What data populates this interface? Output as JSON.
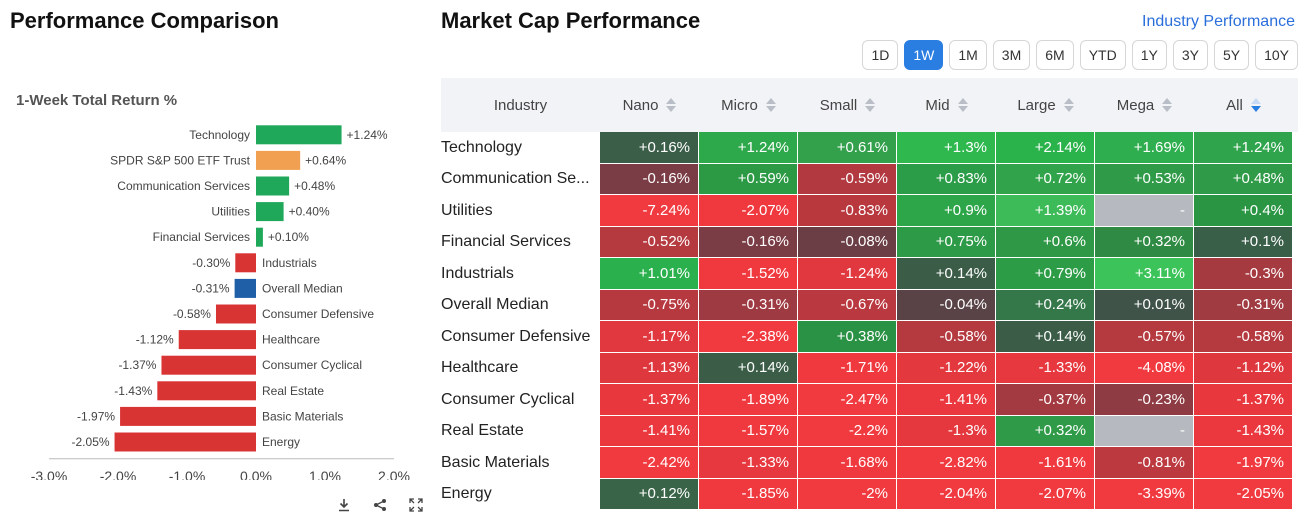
{
  "left": {
    "title": "Performance Comparison",
    "chart_title": "1-Week Total Return %"
  },
  "chart_data": {
    "type": "bar",
    "orientation": "horizontal",
    "title": "1-Week Total Return %",
    "categories": [
      "Technology",
      "SPDR S&P 500 ETF Trust",
      "Communication Services",
      "Utilities",
      "Financial Services",
      "Industrials",
      "Overall Median",
      "Consumer Defensive",
      "Healthcare",
      "Consumer Cyclical",
      "Real Estate",
      "Basic Materials",
      "Energy"
    ],
    "values": [
      1.24,
      0.64,
      0.48,
      0.4,
      0.1,
      -0.3,
      -0.31,
      -0.58,
      -1.12,
      -1.37,
      -1.43,
      -1.97,
      -2.05
    ],
    "value_labels": [
      "+1.24%",
      "+0.64%",
      "+0.48%",
      "+0.40%",
      "+0.10%",
      "-0.30%",
      "-0.31%",
      "-0.58%",
      "-1.12%",
      "-1.37%",
      "-1.43%",
      "-1.97%",
      "-2.05%"
    ],
    "bar_colors": [
      "#1fa85a",
      "#f0a050",
      "#1fa85a",
      "#1fa85a",
      "#1fa85a",
      "#d93434",
      "#1f5fa8",
      "#d93434",
      "#d93434",
      "#d93434",
      "#d93434",
      "#d93434",
      "#d93434"
    ],
    "xlim": [
      -3.0,
      2.0
    ],
    "xticks": [
      -3.0,
      -2.0,
      -1.0,
      0.0,
      1.0,
      2.0
    ],
    "xtick_labels": [
      "-3.0%",
      "-2.0%",
      "-1.0%",
      "0.0%",
      "1.0%",
      "2.0%"
    ],
    "grid": false
  },
  "tools": [
    "download-icon",
    "share-icon",
    "expand-icon"
  ],
  "right": {
    "title": "Market Cap Performance",
    "link": "Industry Performance",
    "periods": [
      "1D",
      "1W",
      "1M",
      "3M",
      "6M",
      "YTD",
      "1Y",
      "3Y",
      "5Y",
      "10Y"
    ],
    "active_period": "1W",
    "columns": [
      "Industry",
      "Nano",
      "Micro",
      "Small",
      "Mid",
      "Large",
      "Mega",
      "All"
    ],
    "sorted_column": "All",
    "rows": [
      {
        "industry": "Technology",
        "values": [
          "+0.16%",
          "+1.24%",
          "+0.61%",
          "+1.3%",
          "+2.14%",
          "+1.69%",
          "+1.24%"
        ],
        "colors": [
          "#3b5e48",
          "#2da84a",
          "#33a04c",
          "#2eb84d",
          "#2ab24b",
          "#2eae4e",
          "#2fa44d"
        ]
      },
      {
        "industry": "Communication Se...",
        "values": [
          "-0.16%",
          "+0.59%",
          "-0.59%",
          "+0.83%",
          "+0.72%",
          "+0.53%",
          "+0.48%"
        ],
        "colors": [
          "#7a3c45",
          "#2c9a45",
          "#b2393f",
          "#2b9c47",
          "#31a44b",
          "#2f9a47",
          "#2f9a47"
        ]
      },
      {
        "industry": "Utilities",
        "values": [
          "-7.24%",
          "-2.07%",
          "-0.83%",
          "+0.9%",
          "+1.39%",
          "-",
          "+0.4%"
        ],
        "colors": [
          "#f03a3f",
          "#f0393e",
          "#b8383e",
          "#2da64a",
          "#3ebb59",
          "#b6b9c0",
          "#2a9644"
        ]
      },
      {
        "industry": "Financial Services",
        "values": [
          "-0.52%",
          "-0.16%",
          "-0.08%",
          "+0.75%",
          "+0.6%",
          "+0.32%",
          "+0.1%"
        ],
        "colors": [
          "#b53a40",
          "#7a3c45",
          "#6b3d45",
          "#2c9a46",
          "#2f9846",
          "#2f8a43",
          "#3a5f49"
        ]
      },
      {
        "industry": "Industrials",
        "values": [
          "+1.01%",
          "-1.52%",
          "-1.24%",
          "+0.14%",
          "+0.79%",
          "+3.11%",
          "-0.3%"
        ],
        "colors": [
          "#2ab04c",
          "#f0393e",
          "#e0383e",
          "#3b5d48",
          "#2c9c47",
          "#3cc45a",
          "#a63a41"
        ]
      },
      {
        "industry": "Overall Median",
        "values": [
          "-0.75%",
          "-0.31%",
          "-0.67%",
          "-0.04%",
          "+0.24%",
          "+0.01%",
          "-0.31%"
        ],
        "colors": [
          "#b73940",
          "#9e3a42",
          "#ba3940",
          "#5a4346",
          "#34784a",
          "#3f5348",
          "#a03b42"
        ]
      },
      {
        "industry": "Consumer Defensive",
        "values": [
          "-1.17%",
          "-2.38%",
          "+0.38%",
          "-0.58%",
          "+0.14%",
          "-0.57%",
          "-0.58%"
        ],
        "colors": [
          "#e0383e",
          "#f03a3f",
          "#2a9244",
          "#b53a40",
          "#3b5d48",
          "#b43a40",
          "#b53a40"
        ]
      },
      {
        "industry": "Healthcare",
        "values": [
          "-1.13%",
          "+0.14%",
          "-1.71%",
          "-1.22%",
          "-1.33%",
          "-4.08%",
          "-1.12%"
        ],
        "colors": [
          "#de383e",
          "#3b5d48",
          "#f0393e",
          "#e2383e",
          "#e6383e",
          "#f03a3f",
          "#de383e"
        ]
      },
      {
        "industry": "Consumer Cyclical",
        "values": [
          "-1.37%",
          "-1.89%",
          "-2.47%",
          "-1.41%",
          "-0.37%",
          "-0.23%",
          "-1.37%"
        ],
        "colors": [
          "#e8383e",
          "#f0393e",
          "#f03a3f",
          "#ea383e",
          "#a43a41",
          "#8e3b43",
          "#e8383e"
        ]
      },
      {
        "industry": "Real Estate",
        "values": [
          "-1.41%",
          "-1.57%",
          "-2.2%",
          "-1.3%",
          "+0.32%",
          "-",
          "-1.43%"
        ],
        "colors": [
          "#ea383e",
          "#f0393e",
          "#f03a3f",
          "#e5383e",
          "#2f9a47",
          "#b6b9c0",
          "#eb383e"
        ]
      },
      {
        "industry": "Basic Materials",
        "values": [
          "-2.42%",
          "-1.33%",
          "-1.68%",
          "-2.82%",
          "-1.61%",
          "-0.81%",
          "-1.97%"
        ],
        "colors": [
          "#f03a3f",
          "#e6383e",
          "#f0393e",
          "#f03a3f",
          "#f0393e",
          "#bc3940",
          "#f03a3f"
        ]
      },
      {
        "industry": "Energy",
        "values": [
          "+0.12%",
          "-1.85%",
          "-2%",
          "-2.04%",
          "-2.07%",
          "-3.39%",
          "-2.05%"
        ],
        "colors": [
          "#3a6448",
          "#f0393e",
          "#f03a3f",
          "#f03a3f",
          "#f03a3f",
          "#f03a3f",
          "#f03a3f"
        ]
      }
    ]
  }
}
